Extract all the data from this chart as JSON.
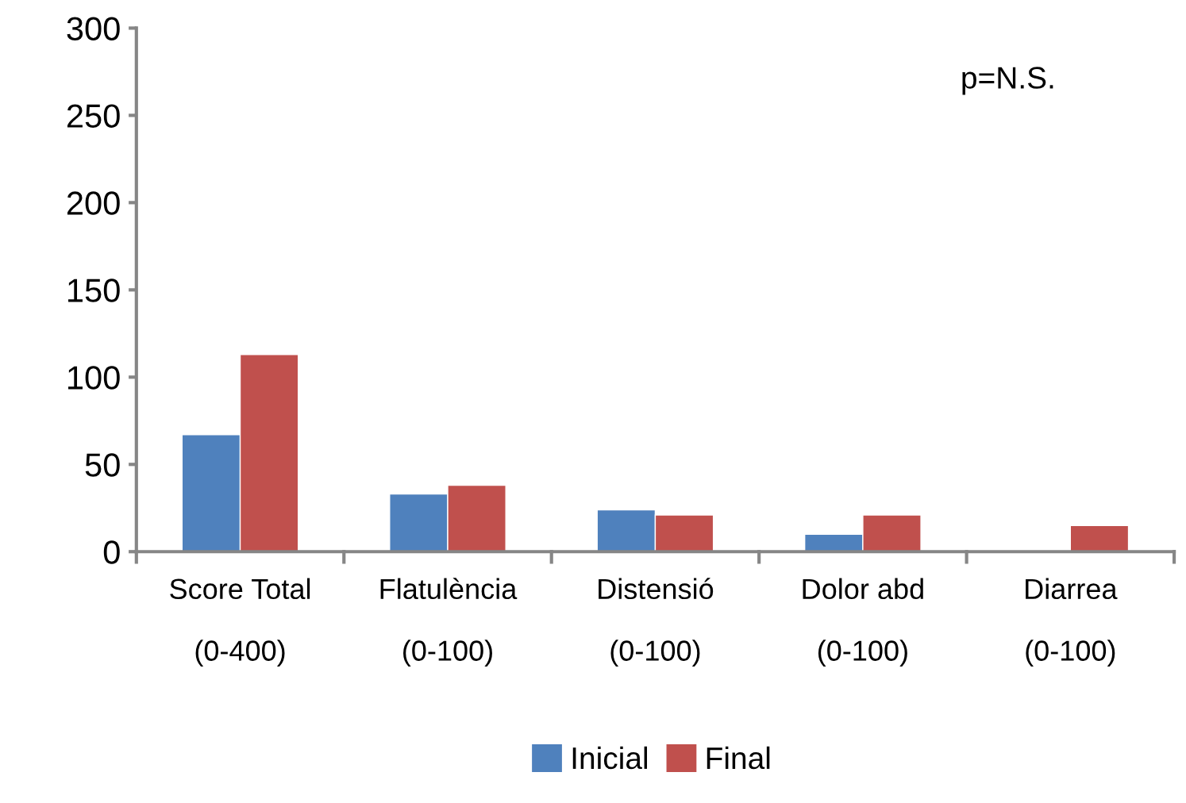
{
  "chart_data": {
    "type": "bar",
    "categories": [
      "Score Total\n\n(0-400)",
      "Flatulència\n\n(0-100)",
      "Distensió\n\n(0-100)",
      "Dolor abd\n\n(0-100)",
      "Diarrea\n\n(0-100)"
    ],
    "series": [
      {
        "name": "Inicial",
        "color": "#4f81bd",
        "values": [
          67,
          33,
          24,
          10,
          null
        ]
      },
      {
        "name": "Final",
        "color": "#c0504d",
        "values": [
          113,
          38,
          21,
          21,
          15
        ]
      }
    ],
    "ylim": [
      0,
      300
    ],
    "yticks": [
      0,
      50,
      100,
      150,
      200,
      250,
      300
    ],
    "grid": false,
    "legend": "bottom",
    "annotations": [
      {
        "text": "p=N.S."
      }
    ]
  }
}
